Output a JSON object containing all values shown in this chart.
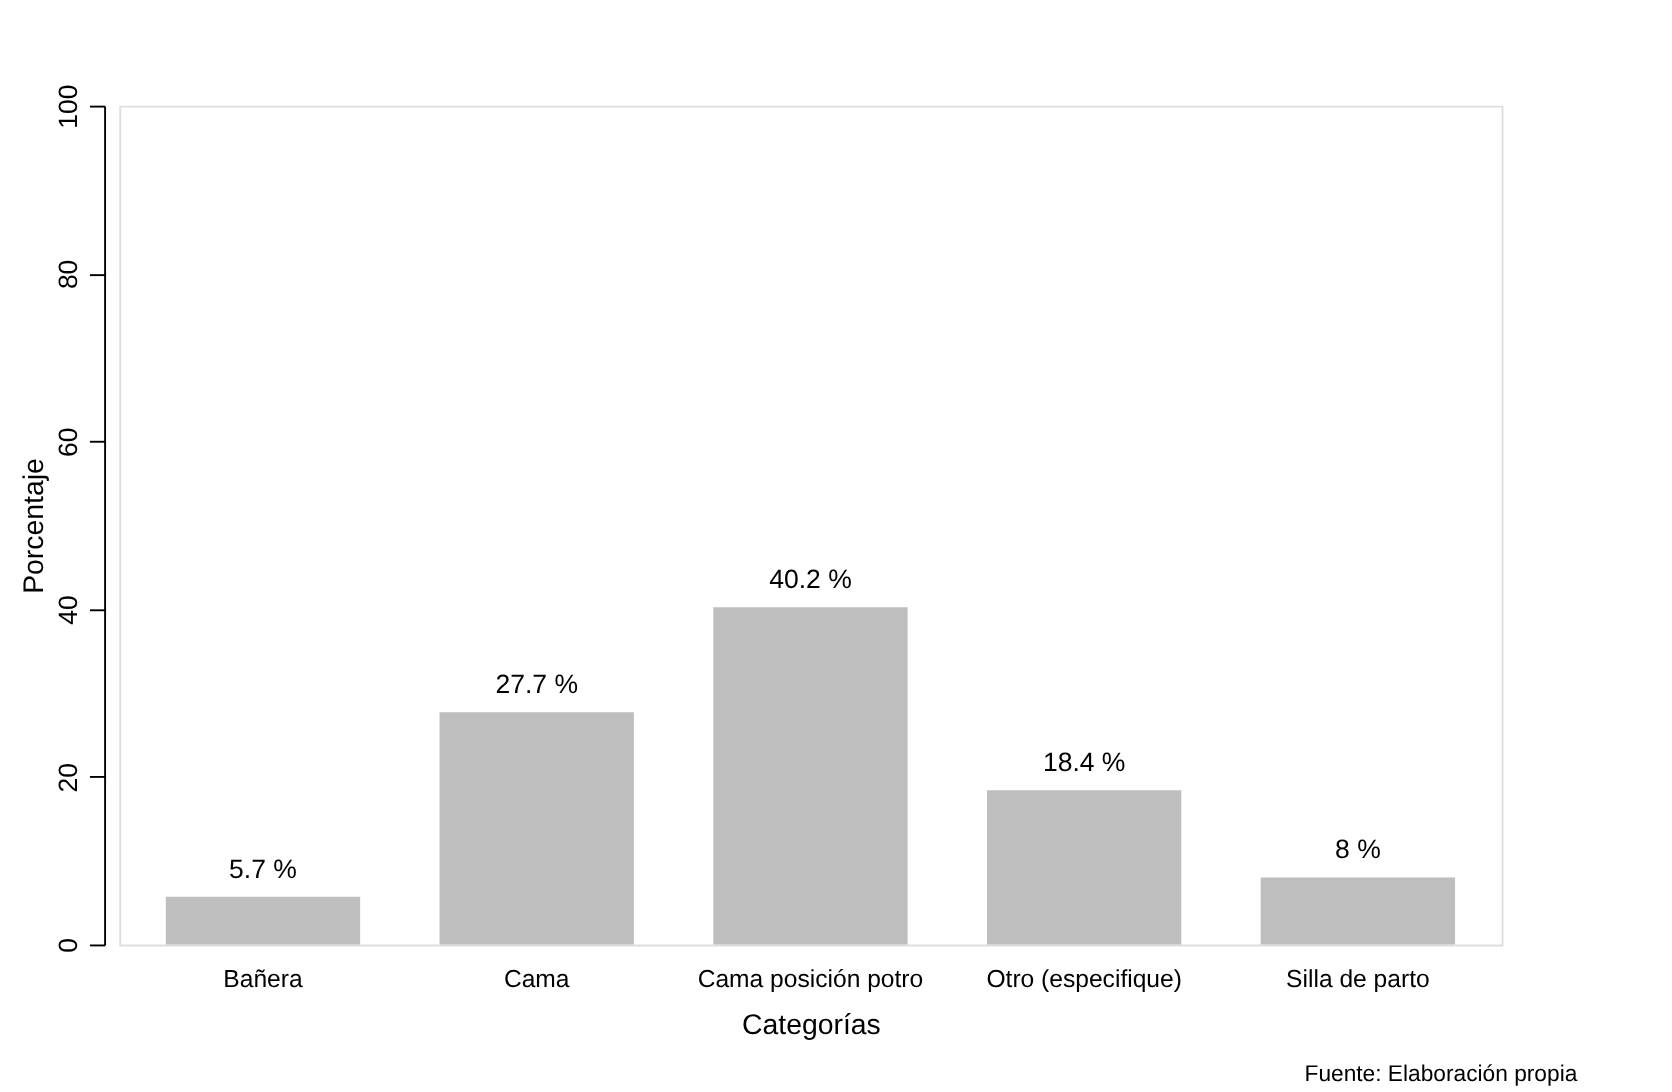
{
  "chart_data": {
    "type": "bar",
    "categories": [
      "Bañera",
      "Cama",
      "Cama posición potro",
      "Otro (especifique)",
      "Silla de parto"
    ],
    "values": [
      5.7,
      27.7,
      40.2,
      18.4,
      8
    ],
    "value_labels": [
      "5.7 %",
      "27.7 %",
      "40.2 %",
      "18.4 %",
      "8 %"
    ],
    "color": "#bebebe",
    "xlabel": "Categorías",
    "ylabel": "Porcentaje",
    "ylim": [
      0,
      100
    ],
    "yticks": [
      0,
      20,
      40,
      60,
      80,
      100
    ],
    "grid": false,
    "annotations": [
      "Fuente: Elaboración propia"
    ]
  }
}
